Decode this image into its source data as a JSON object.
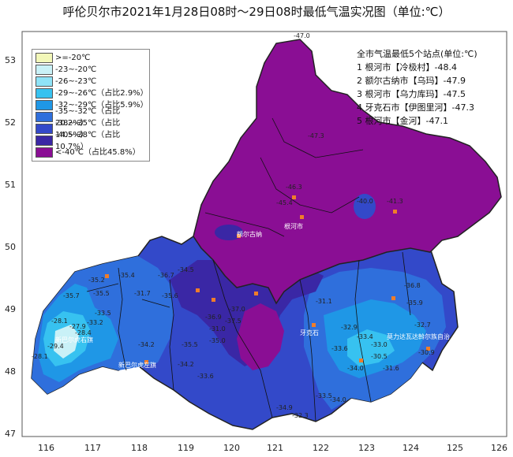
{
  "title": "呼伦贝尔市2021年1月28日08时～29日08时最低气温实况图（单位:℃）",
  "axes": {
    "lat": [
      "53",
      "52",
      "51",
      "50",
      "49",
      "48",
      "47"
    ],
    "lon": [
      "116",
      "117",
      "118",
      "119",
      "120",
      "121",
      "122",
      "123",
      "124",
      "125",
      "126"
    ]
  },
  "legend": [
    {
      "label": ">=-20℃",
      "color": "#f2f7b8"
    },
    {
      "label": "-23~-20℃",
      "color": "#c9f1f7"
    },
    {
      "label": "-26~-23℃",
      "color": "#8fe3f7"
    },
    {
      "label": "-29~-26℃（占比2.9%）",
      "color": "#37c2f0"
    },
    {
      "label": "-32~-29℃（占比5.9%）",
      "color": "#1f97e6"
    },
    {
      "label": "-35~-32℃（占比20.2%）",
      "color": "#2f6fdc"
    },
    {
      "label": "-38~-35℃（占比14.5%）",
      "color": "#3349c9"
    },
    {
      "label": "-40~-38℃（占比10.7%）",
      "color": "#3a27a5"
    },
    {
      "label": "<-40℃（占比45.8%）",
      "color": "#8a0e94"
    }
  ],
  "stats": {
    "heading": "全市气温最低5个站点(单位:℃)",
    "rows": [
      "1 根河市【冷极村】-48.4",
      "2 额尔古纳市【乌玛】-47.9",
      "3 根河市【乌力库玛】-47.5",
      "4 牙克石市【伊图里河】-47.3",
      "5 根河市【金河】-47.1"
    ]
  },
  "place_labels": {
    "xinbaerhuyou": "新巴尔虎右旗",
    "xinbaerhuzuo": "新巴尔虎左旗",
    "xuexiu": "新巴尔虎",
    "zhalaite": "扎兰屯",
    "molidawa": "莫力达瓦达斡尔族自治",
    "genhe": "根河市",
    "yakeshi": "牙克石",
    "eerguna": "额尔古纳"
  },
  "value_labels": [
    "-28.1",
    "-27.9",
    "-33.2",
    "-28.4",
    "-29.4",
    "-28.1",
    "-35.2",
    "-35.4",
    "-35.5",
    "-35.7",
    "-33.5",
    "-31.7",
    "-36.7",
    "-34.5",
    "-34.2",
    "-35.5",
    "-34.2",
    "-33.6",
    "-35.6",
    "-36.9",
    "-35.0",
    "-31.0",
    "-37.0",
    "-37.5",
    "-31.1",
    "-35.9",
    "-36.8",
    "-32.9",
    "-33.4",
    "-33.5",
    "-34.9",
    "-32.3",
    "-34.0",
    "-33.0",
    "-30.5",
    "-32.7",
    "-30.9",
    "-34.0",
    "-31.6",
    "-33.6",
    "-46.3",
    "-45.4",
    "-47.0",
    "-41.3",
    "-40.0",
    "-47.3"
  ],
  "colors": {
    "purple": "#8a0e94",
    "deep_blue": "#3a27a5",
    "blue": "#3349c9",
    "mid_blue": "#2f6fdc",
    "light_blue": "#1f97e6",
    "cyan": "#37c2f0",
    "pale": "#c9f1f7",
    "station": "#f07d2a"
  }
}
